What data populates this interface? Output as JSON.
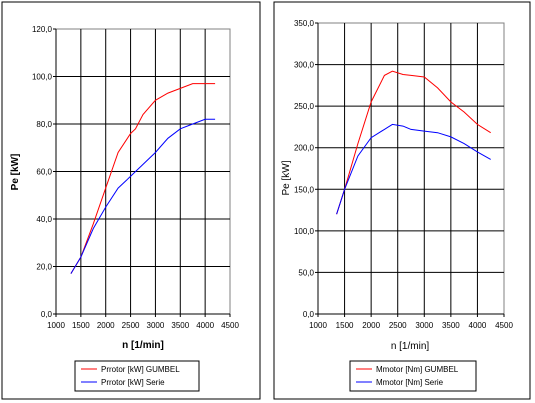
{
  "chart_data": [
    {
      "type": "line",
      "xlabel": "n [1/min]",
      "ylabel": "Pe [kW]",
      "xlim": [
        1000,
        4500
      ],
      "ylim": [
        0,
        120
      ],
      "xticks": [
        "1000",
        "1500",
        "2000",
        "2500",
        "3000",
        "3500",
        "4000",
        "4500"
      ],
      "yticks": [
        "0,0",
        "20,0",
        "40,0",
        "60,0",
        "80,0",
        "100,0",
        "120,0"
      ],
      "grid": true,
      "legend_position": "bottom",
      "series": [
        {
          "name": "Prrotor [kW] GUMBEL",
          "color": "#ff0000",
          "x": [
            1300,
            1500,
            1750,
            2000,
            2250,
            2500,
            2600,
            2750,
            3000,
            3250,
            3500,
            3750,
            4000,
            4200
          ],
          "y": [
            17,
            24,
            38,
            53,
            68,
            76,
            78,
            84,
            90,
            93,
            95,
            97,
            97,
            97
          ]
        },
        {
          "name": "Prrotor [kW] Serie",
          "color": "#0000ff",
          "x": [
            1300,
            1500,
            1750,
            2000,
            2250,
            2500,
            2750,
            3000,
            3250,
            3500,
            3750,
            4000,
            4200
          ],
          "y": [
            17,
            24,
            36,
            45,
            53,
            58,
            63,
            68,
            74,
            78,
            80,
            82,
            82
          ]
        }
      ]
    },
    {
      "type": "line",
      "xlabel": "n [1/min]",
      "ylabel": "Pe [kW]",
      "xlim": [
        1000,
        4500
      ],
      "ylim": [
        0,
        350
      ],
      "xticks": [
        "1000",
        "1500",
        "2000",
        "2500",
        "3000",
        "3500",
        "4000",
        "4500"
      ],
      "yticks": [
        "0,0",
        "50,0",
        "100,0",
        "150,0",
        "200,0",
        "250,0",
        "300,0",
        "350,0"
      ],
      "grid": true,
      "legend_position": "bottom",
      "series": [
        {
          "name": "Mmotor [Nm] GUMBEL",
          "color": "#ff0000",
          "x": [
            1350,
            1500,
            1750,
            2000,
            2250,
            2400,
            2600,
            2750,
            3000,
            3250,
            3500,
            3750,
            4000,
            4250
          ],
          "y": [
            120,
            150,
            205,
            255,
            287,
            292,
            288,
            287,
            285,
            272,
            255,
            243,
            228,
            218
          ]
        },
        {
          "name": "Mmotor [Nm] Serie",
          "color": "#0000ff",
          "x": [
            1350,
            1500,
            1750,
            2000,
            2250,
            2400,
            2600,
            2750,
            3000,
            3250,
            3500,
            3750,
            4000,
            4250
          ],
          "y": [
            120,
            150,
            190,
            212,
            222,
            228,
            226,
            222,
            220,
            218,
            213,
            205,
            195,
            186
          ]
        }
      ]
    }
  ]
}
